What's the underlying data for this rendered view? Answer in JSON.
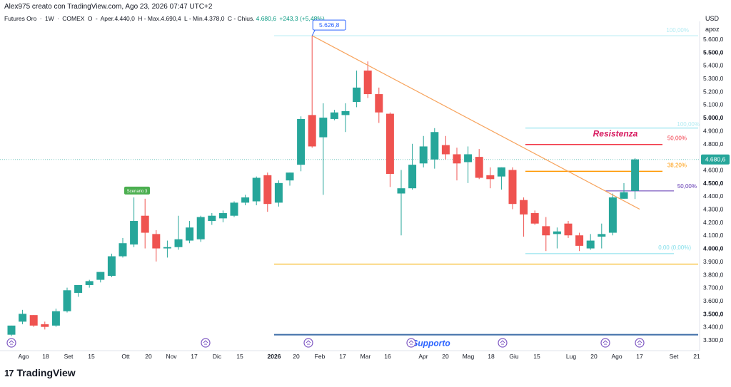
{
  "header": {
    "author": "Alex975 creato con TradingView.com, Ago 23, 2026 07:47 UTC+2",
    "symbol": "Futures Oro",
    "interval": "1W",
    "exchange": "COMEX",
    "open_label": "O",
    "open": "Aper.4.440,0",
    "high": "H - Max.4.690,4",
    "low": "L - Min.4.378,0",
    "close_prefix": "C - Chius.",
    "close": "4.680,6",
    "change": "+243,3 (+5,48%)"
  },
  "axis": {
    "currency": "USD",
    "scale_mode": "apoz"
  },
  "brand": {
    "name": "TradingView",
    "logo_text": "17"
  },
  "colors": {
    "up": "#26a69a",
    "down": "#ef5350",
    "trendline": "#f7a35c",
    "resistance": "#f23645",
    "support_blue": "#2962ff",
    "fib_orange": "#ff9800",
    "fib_purple": "#5e35b1",
    "fib_cyan": "#80deea",
    "yellow_line": "#f9c74f",
    "last_price": "#26a69a"
  },
  "annotations": {
    "peak_label": "5.626,8",
    "resistance_label": "Resistenza",
    "support_label": "Supporto",
    "small_green_label": "Scenario 3",
    "fib_100_top": "100,00%",
    "fib_100_second": "100,00%",
    "fib_50_red": "50,00%",
    "fib_38": "38,20%",
    "fib_50_purple": "50,00%",
    "fib_0": "0,00 (0,00%)"
  },
  "chart_data": {
    "type": "candlestick",
    "symbol": "Futures Oro",
    "interval": "1W",
    "y_ticks": [
      3300,
      3400,
      3500,
      3600,
      3700,
      3800,
      3900,
      4000,
      4100,
      4200,
      4300,
      4400,
      4500,
      4600,
      4700,
      4800,
      4900,
      5000,
      5100,
      5200,
      5300,
      5400,
      5500,
      5600
    ],
    "y_tick_labels": [
      "3.300,0",
      "3.400,0",
      "3.500,0",
      "3.600,0",
      "3.700,0",
      "3.800,0",
      "3.900,0",
      "4.000,0",
      "4.100,0",
      "4.200,0",
      "4.300,0",
      "4.400,0",
      "4.500,0",
      "4.600,0",
      "4.700,0",
      "4.800,0",
      "4.900,0",
      "5.000,0",
      "5.100,0",
      "5.200,0",
      "5.300,0",
      "5.400,0",
      "5.500,0",
      "5.600,0"
    ],
    "bold_ticks": [
      "3.500,0",
      "4.000,0",
      "4.500,0",
      "5.000,0",
      "5.500,0"
    ],
    "ylim": [
      3250,
      5720
    ],
    "x_labels": [
      "Ago",
      "18",
      "Set",
      "15",
      "Ott",
      "20",
      "Nov",
      "17",
      "Dic",
      "15",
      "2026",
      "20",
      "Feb",
      "17",
      "Mar",
      "16",
      "Apr",
      "20",
      "Mag",
      "18",
      "Giu",
      "15",
      "Lug",
      "20",
      "Ago",
      "17",
      "Set",
      "21"
    ],
    "last_price": "4.680,6",
    "candles": [
      {
        "o": 3340,
        "h": 3410,
        "l": 3330,
        "c": 3410
      },
      {
        "o": 3440,
        "h": 3530,
        "l": 3420,
        "c": 3500
      },
      {
        "o": 3490,
        "h": 3490,
        "l": 3400,
        "c": 3410
      },
      {
        "o": 3420,
        "h": 3440,
        "l": 3380,
        "c": 3400
      },
      {
        "o": 3410,
        "h": 3540,
        "l": 3400,
        "c": 3520
      },
      {
        "o": 3520,
        "h": 3700,
        "l": 3510,
        "c": 3680
      },
      {
        "o": 3660,
        "h": 3720,
        "l": 3630,
        "c": 3720
      },
      {
        "o": 3720,
        "h": 3760,
        "l": 3700,
        "c": 3750
      },
      {
        "o": 3760,
        "h": 3820,
        "l": 3740,
        "c": 3820
      },
      {
        "o": 3790,
        "h": 3960,
        "l": 3780,
        "c": 3940
      },
      {
        "o": 3940,
        "h": 4080,
        "l": 3930,
        "c": 4040
      },
      {
        "o": 4030,
        "h": 4390,
        "l": 4010,
        "c": 4210
      },
      {
        "o": 4250,
        "h": 4380,
        "l": 4000,
        "c": 4120
      },
      {
        "o": 4110,
        "h": 4140,
        "l": 3900,
        "c": 4000
      },
      {
        "o": 4000,
        "h": 4060,
        "l": 3930,
        "c": 4010
      },
      {
        "o": 4010,
        "h": 4250,
        "l": 3990,
        "c": 4070
      },
      {
        "o": 4060,
        "h": 4210,
        "l": 4040,
        "c": 4160
      },
      {
        "o": 4070,
        "h": 4250,
        "l": 4050,
        "c": 4240
      },
      {
        "o": 4210,
        "h": 4270,
        "l": 4180,
        "c": 4250
      },
      {
        "o": 4230,
        "h": 4290,
        "l": 4200,
        "c": 4270
      },
      {
        "o": 4250,
        "h": 4360,
        "l": 4240,
        "c": 4350
      },
      {
        "o": 4350,
        "h": 4410,
        "l": 4330,
        "c": 4390
      },
      {
        "o": 4360,
        "h": 4550,
        "l": 4330,
        "c": 4540
      },
      {
        "o": 4560,
        "h": 4580,
        "l": 4280,
        "c": 4340
      },
      {
        "o": 4350,
        "h": 4520,
        "l": 4320,
        "c": 4500
      },
      {
        "o": 4520,
        "h": 4580,
        "l": 4480,
        "c": 4580
      },
      {
        "o": 4640,
        "h": 5010,
        "l": 4590,
        "c": 4990
      },
      {
        "o": 5020,
        "h": 5626.8,
        "l": 4770,
        "c": 4780
      },
      {
        "o": 4850,
        "h": 5110,
        "l": 4410,
        "c": 5000
      },
      {
        "o": 4990,
        "h": 5060,
        "l": 4980,
        "c": 5040
      },
      {
        "o": 5020,
        "h": 5110,
        "l": 4890,
        "c": 5050
      },
      {
        "o": 5120,
        "h": 5360,
        "l": 5080,
        "c": 5230
      },
      {
        "o": 5360,
        "h": 5430,
        "l": 5150,
        "c": 5180
      },
      {
        "o": 5180,
        "h": 5230,
        "l": 4960,
        "c": 5040
      },
      {
        "o": 5030,
        "h": 5040,
        "l": 4470,
        "c": 4570
      },
      {
        "o": 4420,
        "h": 4600,
        "l": 4100,
        "c": 4460
      },
      {
        "o": 4460,
        "h": 4800,
        "l": 4450,
        "c": 4640
      },
      {
        "o": 4650,
        "h": 4860,
        "l": 4620,
        "c": 4780
      },
      {
        "o": 4680,
        "h": 4920,
        "l": 4610,
        "c": 4890
      },
      {
        "o": 4790,
        "h": 4860,
        "l": 4680,
        "c": 4720
      },
      {
        "o": 4720,
        "h": 4770,
        "l": 4520,
        "c": 4650
      },
      {
        "o": 4660,
        "h": 4780,
        "l": 4500,
        "c": 4720
      },
      {
        "o": 4700,
        "h": 4760,
        "l": 4530,
        "c": 4540
      },
      {
        "o": 4560,
        "h": 4620,
        "l": 4460,
        "c": 4530
      },
      {
        "o": 4550,
        "h": 4620,
        "l": 4450,
        "c": 4620
      },
      {
        "o": 4600,
        "h": 4620,
        "l": 4300,
        "c": 4340
      },
      {
        "o": 4370,
        "h": 4390,
        "l": 4090,
        "c": 4260
      },
      {
        "o": 4270,
        "h": 4290,
        "l": 4180,
        "c": 4190
      },
      {
        "o": 4170,
        "h": 4240,
        "l": 3980,
        "c": 4100
      },
      {
        "o": 4110,
        "h": 4160,
        "l": 4000,
        "c": 4130
      },
      {
        "o": 4190,
        "h": 4210,
        "l": 4080,
        "c": 4100
      },
      {
        "o": 4100,
        "h": 4120,
        "l": 3980,
        "c": 4020
      },
      {
        "o": 4000,
        "h": 4110,
        "l": 3990,
        "c": 4060
      },
      {
        "o": 4090,
        "h": 4190,
        "l": 4000,
        "c": 4110
      },
      {
        "o": 4120,
        "h": 4420,
        "l": 4100,
        "c": 4390
      },
      {
        "o": 4380,
        "h": 4500,
        "l": 4380,
        "c": 4430
      },
      {
        "o": 4440,
        "h": 4690.4,
        "l": 4378,
        "c": 4680.6
      }
    ],
    "horizontal_lines": [
      {
        "name": "fib-100-top",
        "value": 5626.8
      },
      {
        "name": "fib-100-second",
        "value": 4920
      },
      {
        "name": "resistance",
        "value": 4795
      },
      {
        "name": "fib-38",
        "value": 4590
      },
      {
        "name": "fib-50-purple",
        "value": 4440
      },
      {
        "name": "fib-0",
        "value": 3960
      },
      {
        "name": "yellow-support",
        "value": 3880
      },
      {
        "name": "blue-support",
        "value": 3340
      }
    ]
  }
}
